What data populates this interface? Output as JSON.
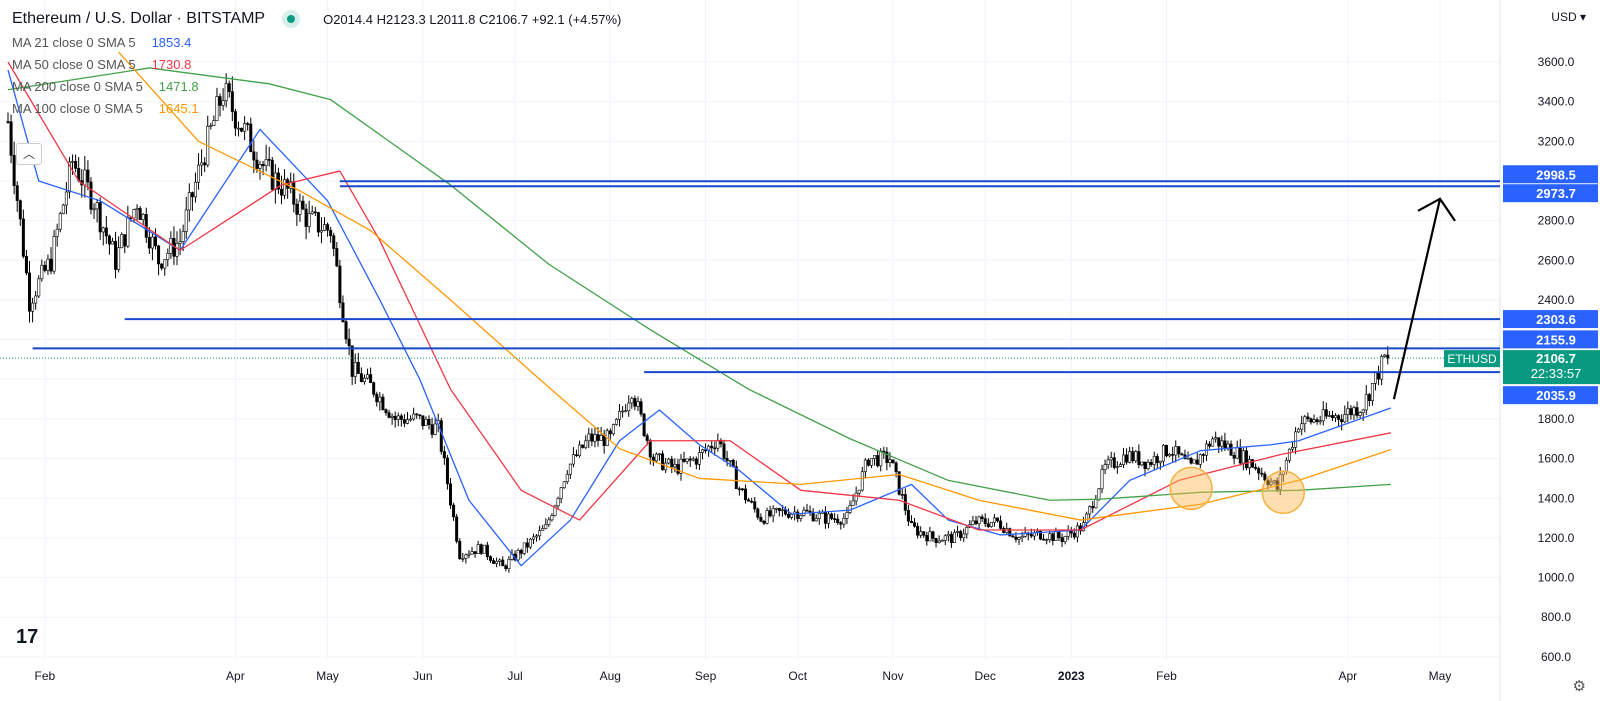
{
  "header": {
    "title": "Ethereum / U.S. Dollar · BITSTAMP",
    "ohlc": "O2014.4 H2123.3 L2011.8 C2106.7 +92.1 (+4.57%)",
    "currency": "USD"
  },
  "indicators": [
    {
      "label": "MA 21 close 0 SMA 5",
      "value": "1853.4",
      "color": "#2962ff"
    },
    {
      "label": "MA 50 close 0 SMA 5",
      "value": "1730.8",
      "color": "#f23645"
    },
    {
      "label": "MA 200 close 0 SMA 5",
      "value": "1471.8",
      "color": "#43a047"
    },
    {
      "label": "MA 100 close 0 SMA 5",
      "value": "1645.1",
      "color": "#ff9800"
    }
  ],
  "chart_data": {
    "type": "candlestick",
    "symbol": "ETHUSD",
    "last_price": "2106.7",
    "countdown": "22:33:57",
    "ylim": [
      600,
      3700
    ],
    "y_ticks": [
      600,
      800,
      1000,
      1200,
      1400,
      1600,
      1800,
      2000,
      2200,
      2400,
      2600,
      2800,
      3000,
      3200,
      3400,
      3600
    ],
    "x_ticks": [
      {
        "label": "Feb",
        "day": 12
      },
      {
        "label": "Apr",
        "day": 74
      },
      {
        "label": "May",
        "day": 104
      },
      {
        "label": "Jun",
        "day": 135
      },
      {
        "label": "Jul",
        "day": 165
      },
      {
        "label": "Aug",
        "day": 196
      },
      {
        "label": "Sep",
        "day": 227
      },
      {
        "label": "Oct",
        "day": 257
      },
      {
        "label": "Nov",
        "day": 288
      },
      {
        "label": "Dec",
        "day": 318
      },
      {
        "label": "2023",
        "day": 346
      },
      {
        "label": "Feb",
        "day": 377
      },
      {
        "label": "Apr",
        "day": 436
      },
      {
        "label": "May",
        "day": 466
      }
    ],
    "weekly_closes": [
      3300,
      2400,
      2600,
      3100,
      2900,
      2600,
      2900,
      2600,
      2700,
      3100,
      3450,
      3250,
      3050,
      2950,
      2800,
      2750,
      2050,
      1950,
      1800,
      1800,
      1750,
      1120,
      1150,
      1050,
      1150,
      1250,
      1550,
      1700,
      1700,
      1950,
      1600,
      1550,
      1600,
      1700,
      1450,
      1300,
      1330,
      1330,
      1300,
      1300,
      1600,
      1600,
      1250,
      1200,
      1200,
      1280,
      1280,
      1200,
      1220,
      1200,
      1260,
      1550,
      1620,
      1580,
      1650,
      1550,
      1700,
      1640,
      1560,
      1450,
      1780,
      1800,
      1820,
      1870,
      2107
    ],
    "moving_averages": [
      {
        "name": "MA 21",
        "color": "#2962ff",
        "points": [
          [
            0,
            3560
          ],
          [
            10,
            3000
          ],
          [
            30,
            2900
          ],
          [
            56,
            2650
          ],
          [
            82,
            3260
          ],
          [
            104,
            2900
          ],
          [
            121,
            2400
          ],
          [
            134,
            2000
          ],
          [
            150,
            1390
          ],
          [
            167,
            1060
          ],
          [
            183,
            1290
          ],
          [
            199,
            1690
          ],
          [
            212,
            1845
          ],
          [
            225,
            1670
          ],
          [
            238,
            1540
          ],
          [
            255,
            1320
          ],
          [
            274,
            1340
          ],
          [
            294,
            1470
          ],
          [
            306,
            1290
          ],
          [
            323,
            1215
          ],
          [
            349,
            1240
          ],
          [
            365,
            1490
          ],
          [
            388,
            1640
          ],
          [
            411,
            1670
          ],
          [
            420,
            1690
          ],
          [
            450,
            1855
          ]
        ]
      },
      {
        "name": "MA 50",
        "color": "#f23645",
        "points": [
          [
            0,
            3600
          ],
          [
            23,
            3000
          ],
          [
            56,
            2650
          ],
          [
            89,
            2980
          ],
          [
            108,
            3050
          ],
          [
            121,
            2700
          ],
          [
            144,
            1950
          ],
          [
            167,
            1440
          ],
          [
            186,
            1290
          ],
          [
            209,
            1690
          ],
          [
            235,
            1690
          ],
          [
            258,
            1440
          ],
          [
            290,
            1390
          ],
          [
            316,
            1240
          ],
          [
            349,
            1240
          ],
          [
            381,
            1490
          ],
          [
            414,
            1620
          ],
          [
            450,
            1730
          ]
        ]
      },
      {
        "name": "MA 200",
        "color": "#43a047",
        "points": [
          [
            0,
            3460
          ],
          [
            46,
            3570
          ],
          [
            85,
            3490
          ],
          [
            105,
            3410
          ],
          [
            144,
            2980
          ],
          [
            176,
            2580
          ],
          [
            209,
            2250
          ],
          [
            241,
            1950
          ],
          [
            274,
            1700
          ],
          [
            306,
            1490
          ],
          [
            339,
            1390
          ],
          [
            355,
            1395
          ],
          [
            388,
            1430
          ],
          [
            420,
            1440
          ],
          [
            450,
            1470
          ]
        ]
      },
      {
        "name": "MA 100",
        "color": "#ff9800",
        "points": [
          [
            36,
            3650
          ],
          [
            62,
            3200
          ],
          [
            95,
            2950
          ],
          [
            118,
            2750
          ],
          [
            144,
            2400
          ],
          [
            173,
            2000
          ],
          [
            199,
            1650
          ],
          [
            225,
            1500
          ],
          [
            258,
            1470
          ],
          [
            290,
            1520
          ],
          [
            316,
            1390
          ],
          [
            349,
            1290
          ],
          [
            388,
            1370
          ],
          [
            420,
            1490
          ],
          [
            450,
            1645
          ]
        ]
      }
    ],
    "horizontal_levels": [
      {
        "price": 2998.5,
        "from_day": 108
      },
      {
        "price": 2973.7,
        "from_day": 108
      },
      {
        "price": 2303.6,
        "from_day": 38
      },
      {
        "price": 2155.9,
        "from_day": 8
      },
      {
        "price": 2035.9,
        "from_day": 207
      }
    ],
    "level_labels": [
      "2998.5",
      "2973.7",
      "2303.6",
      "2155.9",
      "2035.9"
    ],
    "arrow": {
      "from": [
        451,
        1900
      ],
      "to": [
        466,
        2910
      ]
    },
    "highlight_circles": [
      {
        "day": 385,
        "price": 1450
      },
      {
        "day": 415,
        "price": 1430
      }
    ]
  }
}
